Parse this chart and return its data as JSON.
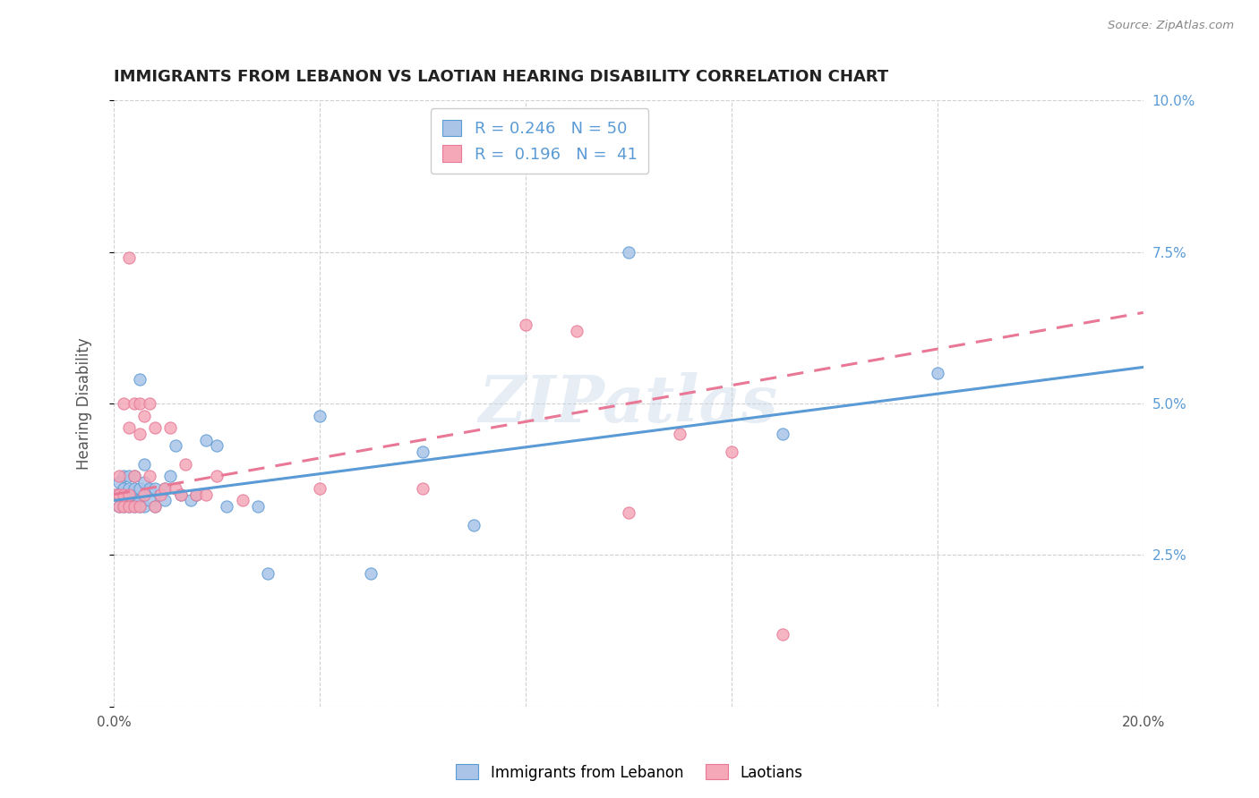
{
  "title": "IMMIGRANTS FROM LEBANON VS LAOTIAN HEARING DISABILITY CORRELATION CHART",
  "source": "Source: ZipAtlas.com",
  "ylabel": "Hearing Disability",
  "xlim": [
    0.0,
    0.2
  ],
  "ylim": [
    0.0,
    0.1
  ],
  "background_color": "#ffffff",
  "grid_color": "#d0d0d0",
  "watermark": "ZIPatlas",
  "lebanon_color": "#aac4e8",
  "laotian_color": "#f4a8b8",
  "lebanon_line_color": "#5b9bd5",
  "laotian_line_color": "#e87896",
  "R_lebanon": 0.246,
  "N_lebanon": 50,
  "R_laotian": 0.196,
  "N_laotian": 41,
  "lebanon_x": [
    0.0005,
    0.001,
    0.001,
    0.001,
    0.002,
    0.002,
    0.002,
    0.002,
    0.003,
    0.003,
    0.003,
    0.003,
    0.003,
    0.004,
    0.004,
    0.004,
    0.004,
    0.004,
    0.005,
    0.005,
    0.005,
    0.005,
    0.006,
    0.006,
    0.006,
    0.006,
    0.007,
    0.007,
    0.008,
    0.008,
    0.009,
    0.01,
    0.01,
    0.011,
    0.012,
    0.013,
    0.015,
    0.016,
    0.018,
    0.02,
    0.022,
    0.028,
    0.03,
    0.04,
    0.05,
    0.06,
    0.07,
    0.1,
    0.13,
    0.16
  ],
  "lebanon_y": [
    0.035,
    0.033,
    0.035,
    0.037,
    0.033,
    0.034,
    0.036,
    0.038,
    0.033,
    0.034,
    0.035,
    0.036,
    0.038,
    0.033,
    0.034,
    0.035,
    0.036,
    0.038,
    0.033,
    0.034,
    0.036,
    0.054,
    0.033,
    0.035,
    0.037,
    0.04,
    0.034,
    0.036,
    0.033,
    0.036,
    0.035,
    0.034,
    0.036,
    0.038,
    0.043,
    0.035,
    0.034,
    0.035,
    0.044,
    0.043,
    0.033,
    0.033,
    0.022,
    0.048,
    0.022,
    0.042,
    0.03,
    0.075,
    0.045,
    0.055
  ],
  "laotian_x": [
    0.0005,
    0.001,
    0.001,
    0.001,
    0.002,
    0.002,
    0.002,
    0.003,
    0.003,
    0.003,
    0.003,
    0.004,
    0.004,
    0.004,
    0.005,
    0.005,
    0.005,
    0.006,
    0.006,
    0.007,
    0.007,
    0.008,
    0.008,
    0.009,
    0.01,
    0.011,
    0.012,
    0.013,
    0.014,
    0.016,
    0.018,
    0.02,
    0.025,
    0.04,
    0.06,
    0.08,
    0.09,
    0.1,
    0.11,
    0.12,
    0.13
  ],
  "laotian_y": [
    0.035,
    0.033,
    0.035,
    0.038,
    0.033,
    0.035,
    0.05,
    0.033,
    0.035,
    0.046,
    0.074,
    0.033,
    0.038,
    0.05,
    0.033,
    0.045,
    0.05,
    0.035,
    0.048,
    0.038,
    0.05,
    0.033,
    0.046,
    0.035,
    0.036,
    0.046,
    0.036,
    0.035,
    0.04,
    0.035,
    0.035,
    0.038,
    0.034,
    0.036,
    0.036,
    0.063,
    0.062,
    0.032,
    0.045,
    0.042,
    0.012
  ],
  "leb_line_x0": 0.0,
  "leb_line_x1": 0.2,
  "leb_line_y0": 0.034,
  "leb_line_y1": 0.056,
  "lao_line_x0": 0.0,
  "lao_line_x1": 0.2,
  "lao_line_y0": 0.035,
  "lao_line_y1": 0.065
}
